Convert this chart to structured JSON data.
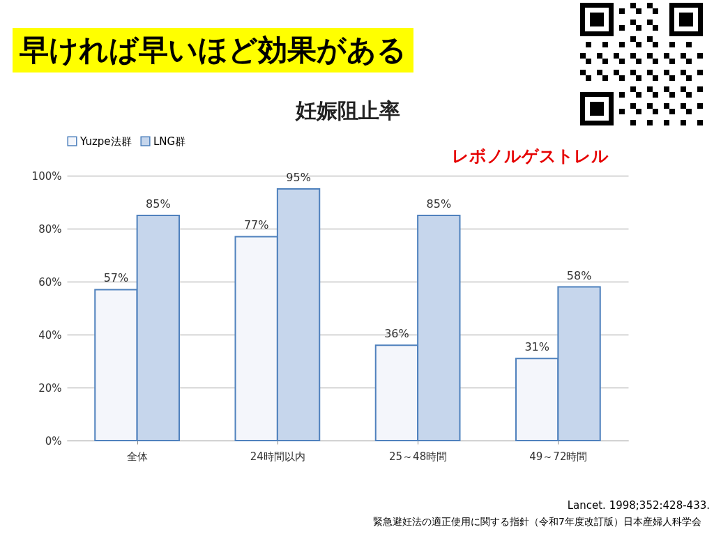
{
  "chart_data": {
    "type": "bar",
    "title": "早ければ早いほど効果がある",
    "subtitle": "妊娠阻止率",
    "categories": [
      "全体",
      "24時間以内",
      "25～48時間",
      "49～72時間"
    ],
    "series": [
      {
        "name": "Yuzpe法群",
        "color": "#f4f6fb",
        "values": [
          57,
          77,
          36,
          31
        ],
        "value_labels": [
          "57%",
          "77%",
          "36%",
          "31%"
        ]
      },
      {
        "name": "LNG群",
        "color": "#c6d6ec",
        "values": [
          85,
          95,
          85,
          58
        ],
        "value_labels": [
          "85%",
          "95%",
          "85%",
          "58%"
        ]
      }
    ],
    "ylim": [
      0,
      100
    ],
    "yticks": [
      {
        "value": 0,
        "label": "0%"
      },
      {
        "value": 20,
        "label": "20%"
      },
      {
        "value": 40,
        "label": "40%"
      },
      {
        "value": 60,
        "label": "60%"
      },
      {
        "value": 80,
        "label": "80%"
      },
      {
        "value": 100,
        "label": "100%"
      }
    ],
    "grid": "y",
    "legend": "top",
    "annotations": [
      "レボノルゲストレル",
      "Lancet. 1998;352:428-433.",
      "緊急避妊法の適正使用に関する指針（令和7年度改訂版）日本産婦人科学会"
    ]
  }
}
